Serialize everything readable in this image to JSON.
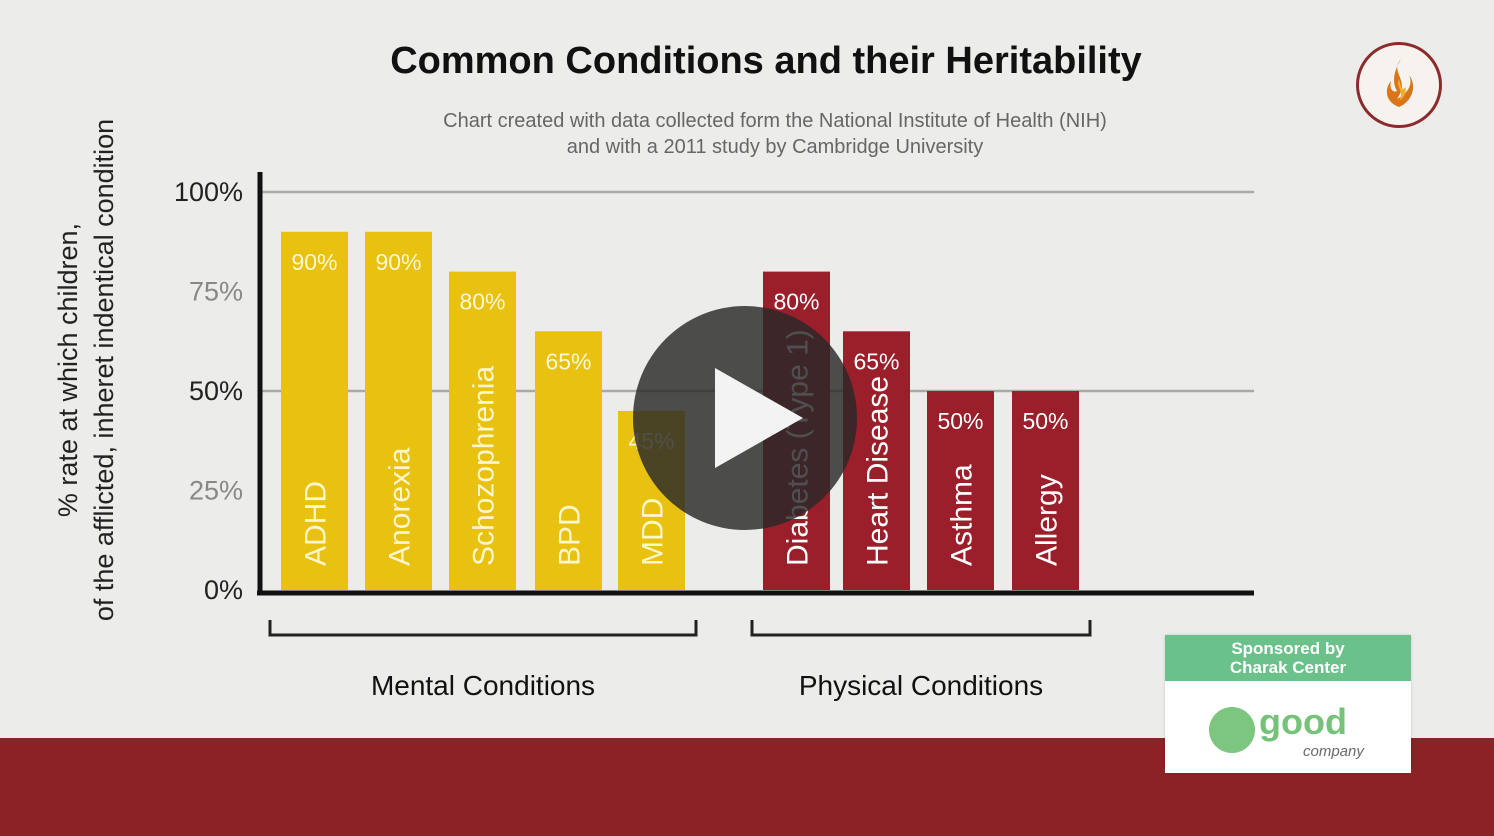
{
  "chart_data": {
    "type": "bar",
    "title": "Common Conditions and their Heritability",
    "subtitle_lines": [
      "Chart created with data collected form the National Institute of Health (NIH)",
      "and with a 2011 study by Cambridge University"
    ],
    "ylabel_lines": [
      "% rate at which children,",
      "of the afflicted, inheret indentical condition"
    ],
    "yticks": [
      "0%",
      "25%",
      "50%",
      "75%",
      "100%"
    ],
    "ylim": [
      0,
      100
    ],
    "grid": true,
    "groups": [
      {
        "name": "Mental Conditions",
        "color": "#e8c111",
        "categories": [
          "ADHD",
          "Anorexia",
          "Schozophrenia",
          "BPD",
          "MDD"
        ],
        "values": [
          90,
          90,
          80,
          65,
          45
        ],
        "value_labels": [
          "90%",
          "90%",
          "80%",
          "65%",
          "45%"
        ]
      },
      {
        "name": "Physical Conditions",
        "color": "#9b1f2a",
        "categories": [
          "Diabetes (Type 1)",
          "Heart Disease",
          "Asthma",
          "Allergy"
        ],
        "values": [
          80,
          65,
          50,
          50
        ],
        "value_labels": [
          "80%",
          "65%",
          "50%",
          "50%"
        ]
      }
    ]
  },
  "sponsor": {
    "line1": "Sponsored by",
    "line2": "Charak Center",
    "brand": "good",
    "brand_sub": "company"
  },
  "icons": {
    "logo": "flame-logo-icon",
    "play": "play-icon"
  }
}
